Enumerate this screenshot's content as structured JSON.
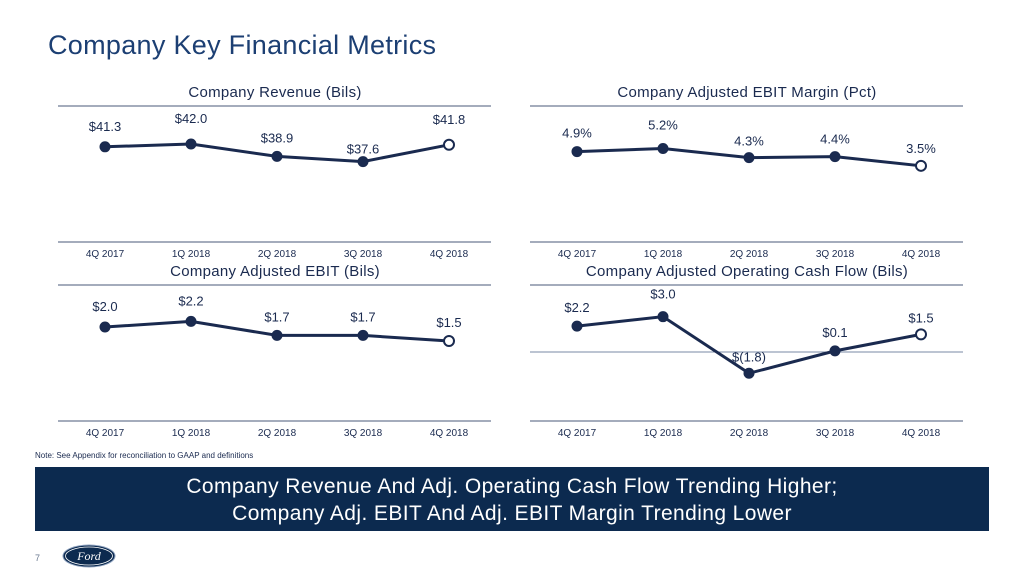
{
  "page": {
    "title": "Company Key Financial Metrics",
    "note": "Note: See Appendix for reconciliation to GAAP and definitions",
    "banner_line1": "Company Revenue And Adj. Operating Cash Flow Trending Higher;",
    "banner_line2": "Company Adj. EBIT And Adj. EBIT Margin Trending Lower",
    "page_number": "7",
    "logo_text": "Ford",
    "colors": {
      "navy": "#0c2a4f",
      "line": "#1a2a4f",
      "title_blue": "#1c3f73"
    }
  },
  "chart_data": [
    {
      "id": "revenue",
      "type": "line",
      "title": "Company Revenue (Bils)",
      "categories": [
        "4Q 2017",
        "1Q 2018",
        "2Q 2018",
        "3Q 2018",
        "4Q 2018"
      ],
      "values": [
        41.3,
        42.0,
        38.9,
        37.6,
        41.8
      ],
      "labels": [
        "$41.3",
        "$42.0",
        "$38.9",
        "$37.6",
        "$41.8"
      ],
      "ylim": [
        20,
        48
      ],
      "zero_line": false
    },
    {
      "id": "ebit-margin",
      "type": "line",
      "title": "Company Adjusted EBIT Margin (Pct)",
      "categories": [
        "4Q 2017",
        "1Q 2018",
        "2Q 2018",
        "3Q 2018",
        "4Q 2018"
      ],
      "values": [
        4.9,
        5.2,
        4.3,
        4.4,
        3.5
      ],
      "labels": [
        "4.9%",
        "5.2%",
        "4.3%",
        "4.4%",
        "3.5%"
      ],
      "ylim": [
        -3,
        8
      ],
      "zero_line": false
    },
    {
      "id": "ebit",
      "type": "line",
      "title": "Company Adjusted EBIT (Bils)",
      "categories": [
        "4Q 2017",
        "1Q 2018",
        "2Q 2018",
        "3Q 2018",
        "4Q 2018"
      ],
      "values": [
        2.0,
        2.2,
        1.7,
        1.7,
        1.5
      ],
      "labels": [
        "$2.0",
        "$2.2",
        "$1.7",
        "$1.7",
        "$1.5"
      ],
      "ylim": [
        -1,
        3
      ],
      "zero_line": false
    },
    {
      "id": "cash-flow",
      "type": "line",
      "title": "Company Adjusted Operating Cash Flow (Bils)",
      "categories": [
        "4Q 2017",
        "1Q 2018",
        "2Q 2018",
        "3Q 2018",
        "4Q 2018"
      ],
      "values": [
        2.2,
        3.0,
        -1.8,
        0.1,
        1.5
      ],
      "labels": [
        "$2.2",
        "$3.0",
        "$(1.8)",
        "$0.1",
        "$1.5"
      ],
      "ylim": [
        -5,
        4.5
      ],
      "zero_line": true
    }
  ]
}
